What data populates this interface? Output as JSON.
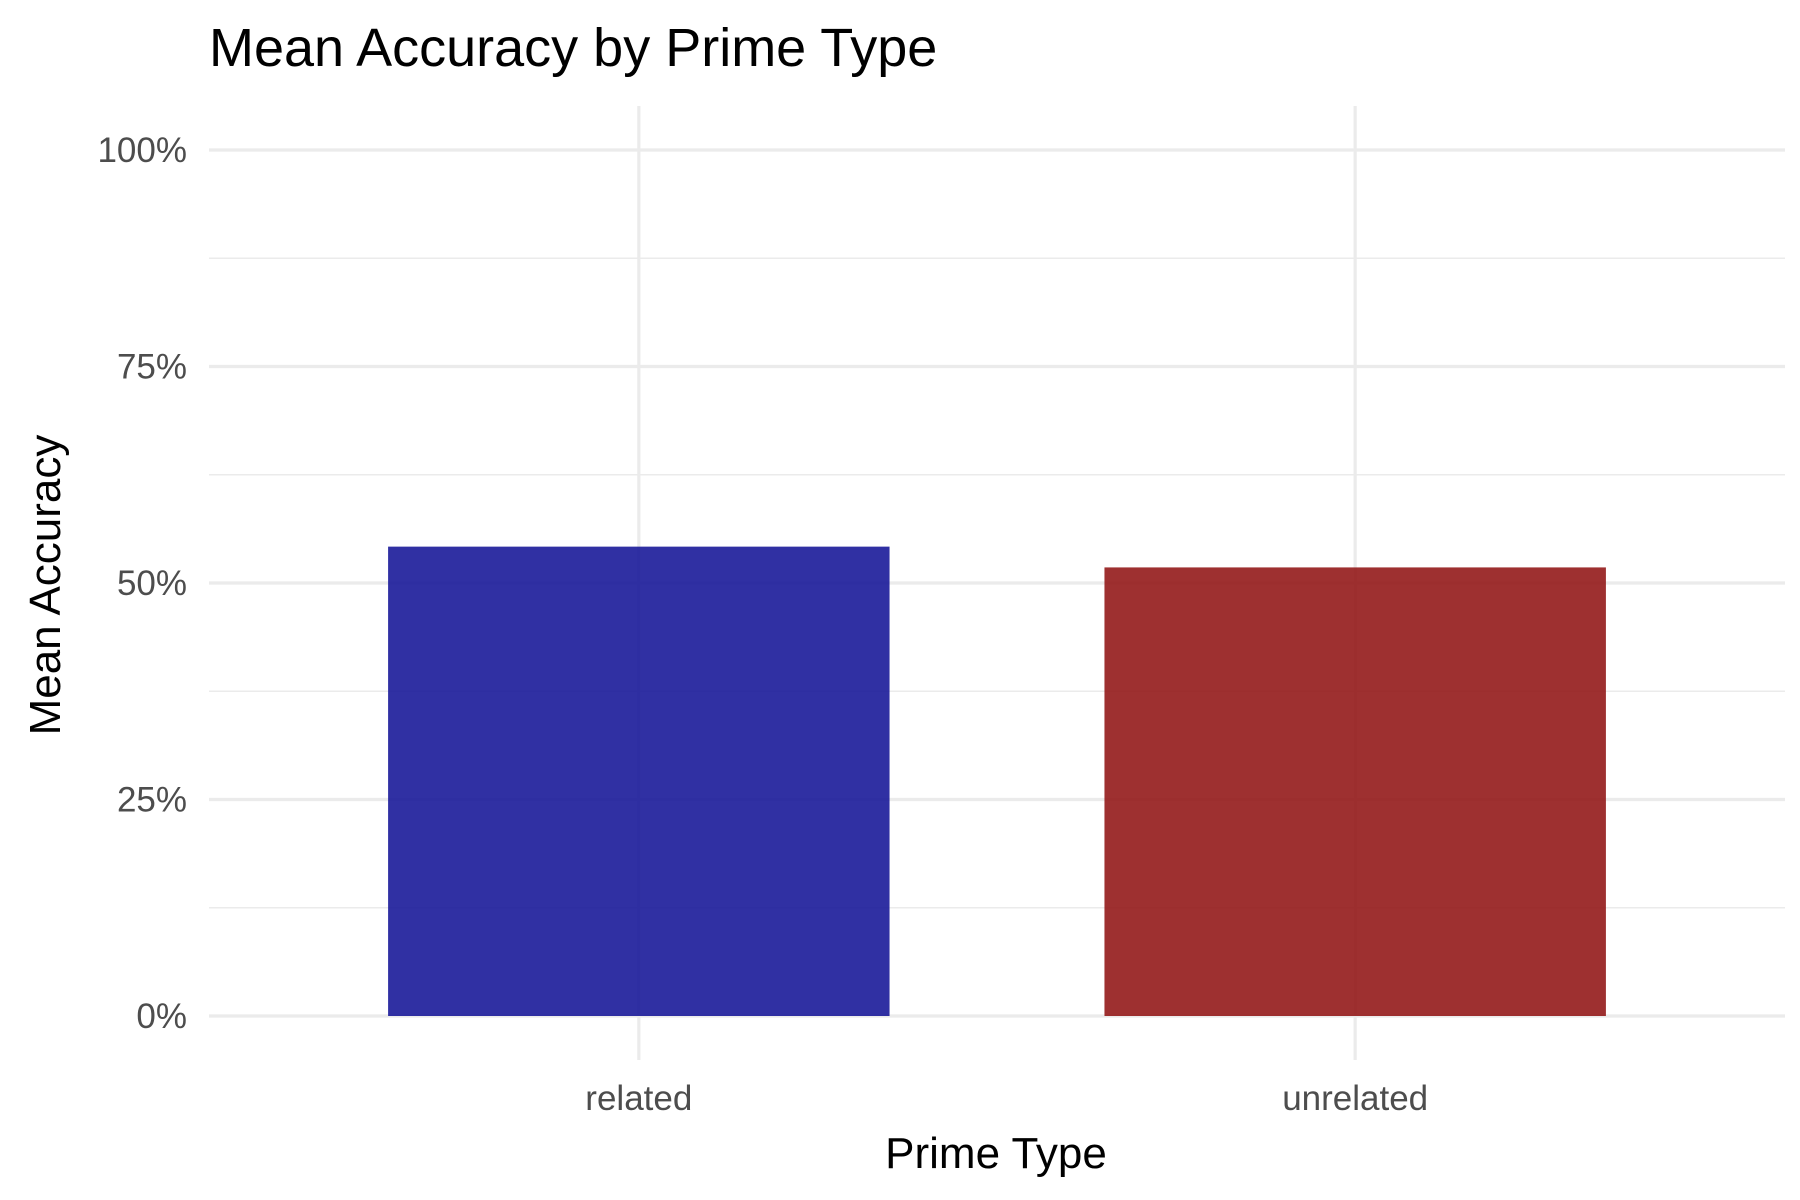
{
  "chart_data": {
    "type": "bar",
    "title": "Mean Accuracy by Prime Type",
    "xlabel": "Prime Type",
    "ylabel": "Mean Accuracy",
    "categories": [
      "related",
      "unrelated"
    ],
    "values": [
      0.542,
      0.518
    ],
    "colors": [
      "#1a1a99",
      "#931a1a"
    ],
    "ylim": [
      0,
      1
    ],
    "y_ticks": [
      0,
      0.25,
      0.5,
      0.75,
      1.0
    ],
    "y_tick_labels": [
      "0%",
      "25%",
      "50%",
      "75%",
      "100%"
    ],
    "y_minor_ticks": [
      0.125,
      0.375,
      0.625,
      0.875
    ],
    "grid": true,
    "legend": "none"
  }
}
